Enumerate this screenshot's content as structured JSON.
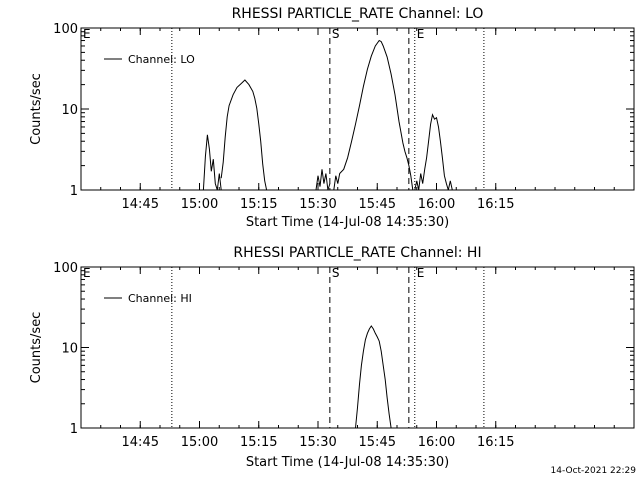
{
  "footer_timestamp": "14-Oct-2021 22:29",
  "chart_data": [
    {
      "type": "line",
      "title": "RHESSI PARTICLE_RATE Channel: LO",
      "xlabel": "Start Time (14-Jul-08 14:35:30)",
      "ylabel": "Counts/sec",
      "y_scale": "log",
      "ylim": [
        1,
        100
      ],
      "xlim_minutes": [
        -5.5,
        134.5
      ],
      "x_tick_labels": [
        "14:45",
        "15:00",
        "15:15",
        "15:30",
        "15:45",
        "16:00",
        "16:15"
      ],
      "x_tick_minutes": [
        9.5,
        24.5,
        39.5,
        54.5,
        69.5,
        84.5,
        99.5
      ],
      "y_tick_labels": [
        "1",
        "10",
        "100"
      ],
      "y_tick_values": [
        1,
        10,
        100
      ],
      "legend": {
        "label": "Channel: LO",
        "position": "top-left"
      },
      "markers": [
        {
          "label": "E",
          "minute": -5.5,
          "style": "dotted"
        },
        {
          "label": "",
          "minute": 17.5,
          "style": "dotted"
        },
        {
          "label": "S",
          "minute": 57.5,
          "style": "dashed"
        },
        {
          "label": "",
          "minute": 77.5,
          "style": "dashed"
        },
        {
          "label": "E",
          "minute": 79.0,
          "style": "dotted"
        },
        {
          "label": "",
          "minute": 96.5,
          "style": "dotted"
        }
      ],
      "series": [
        {
          "name": "Channel: LO",
          "segments": [
            {
              "x": [
                25.5,
                26.0,
                26.5,
                27.0,
                27.5,
                28.0,
                28.5,
                29.0,
                29.5,
                30.0
              ],
              "y": [
                1.0,
                2.6,
                4.8,
                3.2,
                1.7,
                2.4,
                1.2,
                1.0,
                1.6,
                1.0
              ]
            },
            {
              "x": [
                30.0,
                30.5,
                31.0,
                31.5,
                32.0,
                33.0,
                34.0,
                35.0,
                36.0,
                37.0,
                38.0,
                38.5,
                39.0,
                39.5,
                40.0,
                40.5,
                41.0,
                41.5
              ],
              "y": [
                1.4,
                2.2,
                4.5,
                8.0,
                11.0,
                15.0,
                18.5,
                20.5,
                22.8,
                20.0,
                16.5,
                13.5,
                10.2,
                6.5,
                4.0,
                2.1,
                1.3,
                1.0
              ]
            },
            {
              "x": [
                54.0,
                54.5,
                55.0,
                55.5,
                56.0,
                56.5,
                57.0,
                57.5
              ],
              "y": [
                1.0,
                1.5,
                1.1,
                1.8,
                1.2,
                1.6,
                1.0,
                1.2
              ]
            },
            {
              "x": [
                58.5,
                59.0,
                59.5,
                60.0,
                61.0,
                62.0,
                63.0,
                64.0,
                65.0,
                66.0,
                67.0,
                68.0,
                69.0,
                70.0,
                70.5,
                71.0,
                72.0,
                73.0,
                74.0,
                75.0,
                76.0,
                76.5,
                77.0,
                77.5,
                78.0,
                78.5
              ],
              "y": [
                1.0,
                1.5,
                1.2,
                1.6,
                1.8,
                2.5,
                4.0,
                6.5,
                11.0,
                19.0,
                31.0,
                45.0,
                60.0,
                70.0,
                68.0,
                60.0,
                44.0,
                27.0,
                15.0,
                7.0,
                3.8,
                3.0,
                2.5,
                2.0,
                1.5,
                1.0
              ]
            },
            {
              "x": [
                79.0,
                79.5,
                80.0,
                80.5,
                81.0,
                81.5,
                82.0,
                82.5,
                83.0,
                83.5,
                84.0,
                84.5,
                85.0,
                85.5,
                86.0,
                86.5,
                87.0,
                87.5,
                88.0,
                88.5
              ],
              "y": [
                1.0,
                1.3,
                1.0,
                1.6,
                1.2,
                1.8,
                2.5,
                4.0,
                6.5,
                8.5,
                7.5,
                7.8,
                6.0,
                4.0,
                2.5,
                1.5,
                1.2,
                1.0,
                1.3,
                1.0
              ]
            }
          ]
        }
      ]
    },
    {
      "type": "line",
      "title": "RHESSI PARTICLE_RATE Channel: HI",
      "xlabel": "Start Time (14-Jul-08 14:35:30)",
      "ylabel": "Counts/sec",
      "y_scale": "log",
      "ylim": [
        1,
        100
      ],
      "xlim_minutes": [
        -5.5,
        134.5
      ],
      "x_tick_labels": [
        "14:45",
        "15:00",
        "15:15",
        "15:30",
        "15:45",
        "16:00",
        "16:15"
      ],
      "x_tick_minutes": [
        9.5,
        24.5,
        39.5,
        54.5,
        69.5,
        84.5,
        99.5
      ],
      "y_tick_labels": [
        "1",
        "10",
        "100"
      ],
      "y_tick_values": [
        1,
        10,
        100
      ],
      "legend": {
        "label": "Channel: HI",
        "position": "top-left"
      },
      "markers": [
        {
          "label": "E",
          "minute": -5.5,
          "style": "dotted"
        },
        {
          "label": "",
          "minute": 17.5,
          "style": "dotted"
        },
        {
          "label": "S",
          "minute": 57.5,
          "style": "dashed"
        },
        {
          "label": "",
          "minute": 77.5,
          "style": "dashed"
        },
        {
          "label": "E",
          "minute": 79.0,
          "style": "dotted"
        },
        {
          "label": "",
          "minute": 96.5,
          "style": "dotted"
        }
      ],
      "series": [
        {
          "name": "Channel: HI",
          "segments": [
            {
              "x": [
                64.0,
                64.5,
                65.0,
                65.5,
                66.0,
                66.5,
                67.0,
                67.5,
                68.0,
                68.5,
                69.0,
                69.5,
                70.0,
                70.5,
                71.0,
                71.5,
                72.0,
                72.5,
                73.0
              ],
              "y": [
                1.0,
                1.8,
                3.5,
                6.0,
                9.0,
                12.5,
                15.0,
                17.0,
                18.5,
                17.0,
                15.0,
                13.5,
                12.0,
                9.0,
                6.0,
                4.0,
                2.4,
                1.5,
                1.0
              ]
            }
          ]
        }
      ]
    }
  ]
}
